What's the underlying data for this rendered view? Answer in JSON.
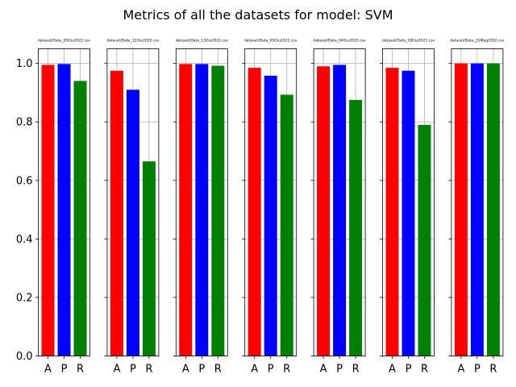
{
  "title": "Metrics of all the datasets for model: SVM",
  "chart_data": {
    "type": "bar",
    "title": "Metrics of all the datasets for model: SVM",
    "categories": [
      "A",
      "P",
      "R"
    ],
    "bar_colors": [
      "#ff0000",
      "#0000ff",
      "#008000"
    ],
    "ylim": [
      0,
      1.05
    ],
    "yticks": [
      0.0,
      0.2,
      0.4,
      0.6,
      0.8,
      1.0
    ],
    "ytick_labels": [
      "0.0",
      "0.2",
      "0.4",
      "0.6",
      "0.8",
      "1.0"
    ],
    "grid": true,
    "subplots": [
      {
        "title": "dataset/Data_20Giu2022.csv",
        "values": [
          0.995,
          0.998,
          0.94
        ]
      },
      {
        "title": "dataset/Data_12Giu2022.csv",
        "values": [
          0.975,
          0.91,
          0.665
        ]
      },
      {
        "title": "dataset/Data_13Giu2022.csv",
        "values": [
          0.998,
          0.998,
          0.992
        ]
      },
      {
        "title": "dataset/Data_05Giu2022.csv",
        "values": [
          0.985,
          0.958,
          0.893
        ]
      },
      {
        "title": "dataset/Data_04Giu2022.csv",
        "values": [
          0.99,
          0.995,
          0.875
        ]
      },
      {
        "title": "dataset/Data_18Giu2022.csv",
        "values": [
          0.985,
          0.975,
          0.79
        ]
      },
      {
        "title": "dataset/Data_31Mag2022.csv",
        "values": [
          1.0,
          1.0,
          1.0
        ]
      }
    ]
  }
}
